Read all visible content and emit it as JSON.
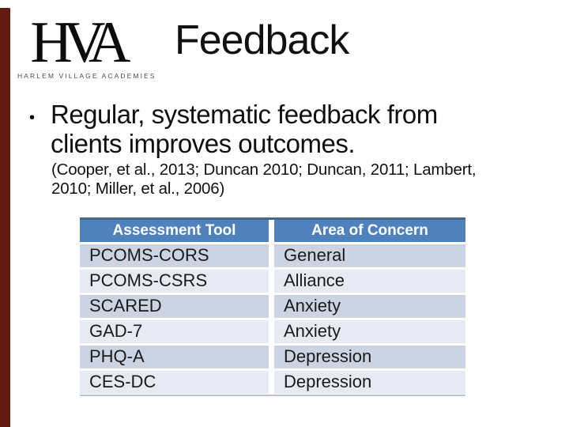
{
  "slide": {
    "title": "Feedback",
    "logo": {
      "letters": "HVA",
      "caption": "HARLEM VILLAGE ACADEMIES"
    },
    "bullet": {
      "marker": "•",
      "lines": [
        "Regular, systematic feedback from",
        "clients improves outcomes."
      ],
      "citation_lines": [
        "(Cooper, et al., 2013; Duncan 2010; Duncan, 2011; Lambert,",
        "2010; Miller, et al., 2006)"
      ]
    },
    "table": {
      "headers": [
        "Assessment Tool",
        "Area of Concern"
      ],
      "rows": [
        [
          "PCOMS-CORS",
          "General"
        ],
        [
          "PCOMS-CSRS",
          "Alliance"
        ],
        [
          "SCARED",
          "Anxiety"
        ],
        [
          "GAD-7",
          "Anxiety"
        ],
        [
          "PHQ-A",
          "Depression"
        ],
        [
          "CES-DC",
          "Depression"
        ]
      ]
    },
    "colors": {
      "accent_bar": "#651b11",
      "header_bg": "#4f81bd",
      "header_text": "#ffffff",
      "header_top": "#46688f",
      "row_odd": "#ccd3e3",
      "row_even": "#e7eaf2",
      "row_text": "#1a1a1a",
      "title_text": "#111111",
      "body_text": "#101010",
      "caption_text": "#4d4d4d"
    }
  }
}
